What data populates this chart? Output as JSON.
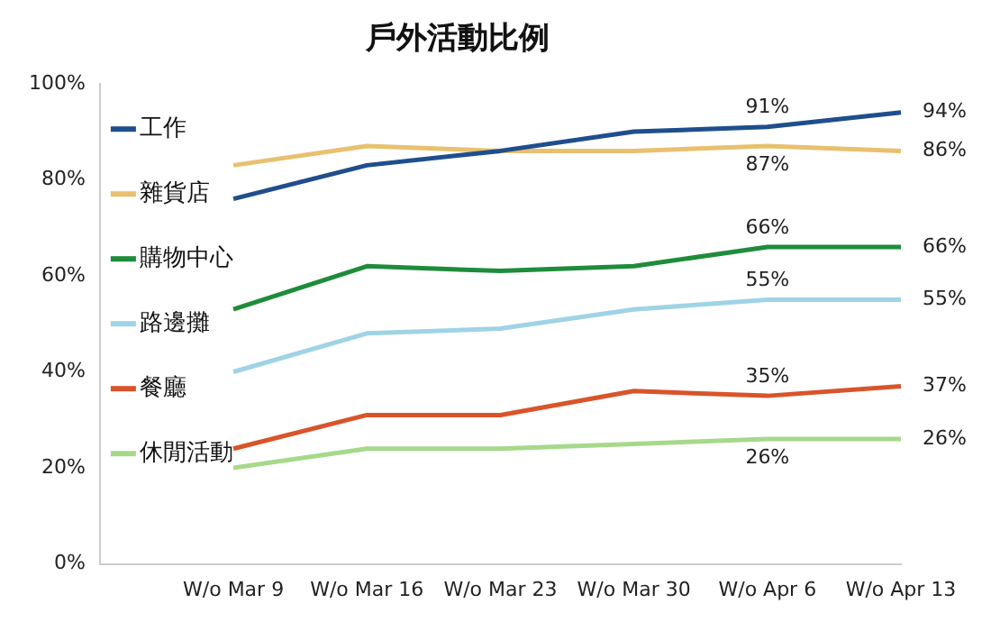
{
  "chart_data": {
    "type": "line",
    "title": "戶外活動比例",
    "categories": [
      null,
      "W/o Mar 9",
      "W/o Mar 16",
      "W/o Mar 23",
      "W/o Mar 30",
      "W/o Apr 6",
      "W/o Apr 13"
    ],
    "ylim": [
      0,
      100
    ],
    "yticks": [
      {
        "value": 0,
        "label": "0%"
      },
      {
        "value": 20,
        "label": "20%"
      },
      {
        "value": 40,
        "label": "40%"
      },
      {
        "value": 60,
        "label": "60%"
      },
      {
        "value": 80,
        "label": "80%"
      },
      {
        "value": 100,
        "label": "100%"
      }
    ],
    "grid": false,
    "legend": "left",
    "marker": "none",
    "line_style": "solid",
    "series": [
      {
        "name": "工作",
        "color": "#1f4e8c",
        "values": [
          null,
          76,
          83,
          86,
          90,
          91,
          94
        ],
        "value_labels": [
          null,
          null,
          null,
          null,
          null,
          "91%",
          "94%"
        ]
      },
      {
        "name": "雜貨店",
        "color": "#e8c170",
        "values": [
          null,
          83,
          87,
          86,
          86,
          87,
          86
        ],
        "value_labels": [
          null,
          null,
          null,
          null,
          null,
          "87%",
          "86%"
        ]
      },
      {
        "name": "購物中心",
        "color": "#1e8c3a",
        "values": [
          null,
          53,
          62,
          61,
          62,
          66,
          66
        ],
        "value_labels": [
          null,
          null,
          null,
          null,
          null,
          "66%",
          "66%"
        ]
      },
      {
        "name": "路邊攤",
        "color": "#9fd3e6",
        "values": [
          null,
          40,
          48,
          49,
          53,
          55,
          55
        ],
        "value_labels": [
          null,
          null,
          null,
          null,
          null,
          "55%",
          "55%"
        ]
      },
      {
        "name": "餐廳",
        "color": "#d9542a",
        "values": [
          null,
          24,
          31,
          31,
          36,
          35,
          37
        ],
        "value_labels": [
          null,
          null,
          null,
          null,
          null,
          "35%",
          "37%"
        ]
      },
      {
        "name": "休閒活動",
        "color": "#a6d98a",
        "values": [
          null,
          20,
          24,
          24,
          25,
          26,
          26
        ],
        "value_labels": [
          null,
          null,
          null,
          null,
          null,
          "26%",
          "26%"
        ]
      }
    ]
  }
}
